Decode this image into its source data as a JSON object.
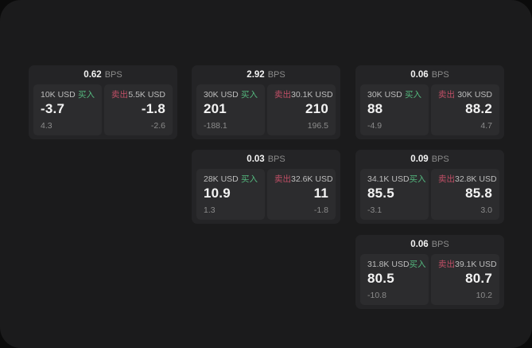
{
  "labels": {
    "bps_unit": "BPS",
    "buy": "买入",
    "sell": "卖出"
  },
  "colors": {
    "background": "#0b0b0b",
    "panel": "#1b1b1c",
    "card": "#242426",
    "tile": "#2c2c2e",
    "buy_green": "#54b87e",
    "sell_red": "#c04f66",
    "value_white": "#f3f3f3",
    "muted_grey": "#8b8b8b",
    "amount_grey": "#bdbdbd"
  },
  "cards": [
    {
      "bps": "0.62",
      "buy": {
        "amount": "10K USD",
        "price": "-3.7",
        "change": "4.3"
      },
      "sell": {
        "amount": "5.5K USD",
        "price": "-1.8",
        "change": "-2.6"
      }
    },
    {
      "bps": "2.92",
      "buy": {
        "amount": "30K USD",
        "price": "201",
        "change": "-188.1"
      },
      "sell": {
        "amount": "30.1K USD",
        "price": "210",
        "change": "196.5"
      }
    },
    {
      "bps": "0.06",
      "buy": {
        "amount": "30K USD",
        "price": "88",
        "change": "-4.9"
      },
      "sell": {
        "amount": "30K USD",
        "price": "88.2",
        "change": "4.7"
      }
    },
    {
      "bps": "0.03",
      "buy": {
        "amount": "28K USD",
        "price": "10.9",
        "change": "1.3"
      },
      "sell": {
        "amount": "32.6K USD",
        "price": "11",
        "change": "-1.8"
      }
    },
    {
      "bps": "0.09",
      "buy": {
        "amount": "34.1K USD",
        "price": "85.5",
        "change": "-3.1"
      },
      "sell": {
        "amount": "32.8K USD",
        "price": "85.8",
        "change": "3.0"
      }
    },
    {
      "bps": "0.06",
      "buy": {
        "amount": "31.8K USD",
        "price": "80.5",
        "change": "-10.8"
      },
      "sell": {
        "amount": "39.1K USD",
        "price": "80.7",
        "change": "10.2"
      }
    }
  ]
}
